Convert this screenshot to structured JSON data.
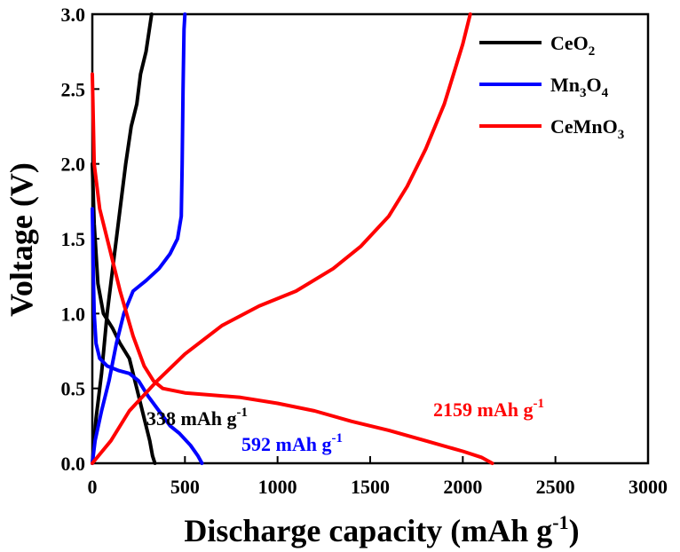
{
  "chart_data": {
    "type": "line",
    "xlabel": "Discharge capacity (mAh g",
    "xlabel_sup": "-1",
    "xlabel_end": ")",
    "ylabel": "Voltage (V)",
    "xlim": [
      0,
      3000
    ],
    "ylim": [
      0.0,
      3.0
    ],
    "xticks": [
      0,
      500,
      1000,
      1500,
      2000,
      2500,
      3000
    ],
    "xtick_labels": [
      "0",
      "500",
      "1000",
      "1500",
      "2000",
      "2500",
      "3000"
    ],
    "yticks": [
      0.0,
      0.5,
      1.0,
      1.5,
      2.0,
      2.5,
      3.0
    ],
    "ytick_labels": [
      "0.0",
      "0.5",
      "1.0",
      "1.5",
      "2.0",
      "2.5",
      "3.0"
    ],
    "legend_position": "top-right",
    "series": [
      {
        "name": "CeO2",
        "legend_main": "CeO",
        "legend_sub": "2",
        "color": "#000000",
        "discharge": [
          [
            0,
            2.0
          ],
          [
            10,
            1.6
          ],
          [
            30,
            1.2
          ],
          [
            60,
            1.0
          ],
          [
            110,
            0.9
          ],
          [
            150,
            0.8
          ],
          [
            200,
            0.7
          ],
          [
            240,
            0.5
          ],
          [
            280,
            0.3
          ],
          [
            310,
            0.15
          ],
          [
            325,
            0.05
          ],
          [
            338,
            0.0
          ]
        ],
        "charge": [
          [
            0,
            0.0
          ],
          [
            20,
            0.3
          ],
          [
            50,
            0.6
          ],
          [
            80,
            1.0
          ],
          [
            120,
            1.4
          ],
          [
            150,
            1.7
          ],
          [
            180,
            2.0
          ],
          [
            210,
            2.25
          ],
          [
            240,
            2.4
          ],
          [
            260,
            2.6
          ],
          [
            290,
            2.75
          ],
          [
            320,
            3.0
          ]
        ]
      },
      {
        "name": "Mn3O4",
        "legend_parts": [
          "Mn",
          "3",
          "O",
          "4"
        ],
        "color": "#0000ff",
        "discharge": [
          [
            0,
            1.7
          ],
          [
            5,
            1.3
          ],
          [
            10,
            1.0
          ],
          [
            20,
            0.8
          ],
          [
            40,
            0.7
          ],
          [
            80,
            0.65
          ],
          [
            140,
            0.62
          ],
          [
            200,
            0.6
          ],
          [
            250,
            0.55
          ],
          [
            300,
            0.45
          ],
          [
            360,
            0.35
          ],
          [
            420,
            0.25
          ],
          [
            470,
            0.2
          ],
          [
            530,
            0.12
          ],
          [
            570,
            0.05
          ],
          [
            592,
            0.0
          ]
        ],
        "charge": [
          [
            0,
            0.0
          ],
          [
            15,
            0.15
          ],
          [
            50,
            0.35
          ],
          [
            90,
            0.55
          ],
          [
            130,
            0.8
          ],
          [
            170,
            1.0
          ],
          [
            220,
            1.15
          ],
          [
            290,
            1.22
          ],
          [
            360,
            1.3
          ],
          [
            420,
            1.4
          ],
          [
            460,
            1.5
          ],
          [
            480,
            1.65
          ],
          [
            485,
            2.0
          ],
          [
            490,
            2.5
          ],
          [
            495,
            2.9
          ],
          [
            500,
            3.0
          ]
        ]
      },
      {
        "name": "CeMnO3",
        "legend_main": "CeMnO",
        "legend_sub": "3",
        "color": "#ff0000",
        "discharge": [
          [
            0,
            2.6
          ],
          [
            10,
            2.0
          ],
          [
            40,
            1.7
          ],
          [
            90,
            1.45
          ],
          [
            150,
            1.15
          ],
          [
            220,
            0.85
          ],
          [
            280,
            0.65
          ],
          [
            330,
            0.55
          ],
          [
            380,
            0.5
          ],
          [
            500,
            0.47
          ],
          [
            800,
            0.44
          ],
          [
            1000,
            0.4
          ],
          [
            1200,
            0.35
          ],
          [
            1400,
            0.28
          ],
          [
            1600,
            0.22
          ],
          [
            1800,
            0.15
          ],
          [
            2000,
            0.08
          ],
          [
            2100,
            0.04
          ],
          [
            2159,
            0.0
          ]
        ],
        "charge": [
          [
            0,
            0.0
          ],
          [
            100,
            0.15
          ],
          [
            200,
            0.35
          ],
          [
            350,
            0.55
          ],
          [
            500,
            0.73
          ],
          [
            700,
            0.92
          ],
          [
            900,
            1.05
          ],
          [
            1100,
            1.15
          ],
          [
            1300,
            1.3
          ],
          [
            1450,
            1.45
          ],
          [
            1600,
            1.65
          ],
          [
            1700,
            1.85
          ],
          [
            1800,
            2.1
          ],
          [
            1900,
            2.4
          ],
          [
            1950,
            2.6
          ],
          [
            2000,
            2.8
          ],
          [
            2030,
            2.95
          ],
          [
            2040,
            3.0
          ]
        ]
      }
    ],
    "annotations": [
      {
        "value": "338",
        "unit": " mAh g",
        "sup": "-1",
        "color": "#000000",
        "x": 300,
        "y": 0.24
      },
      {
        "value": "592",
        "unit": " mAh g",
        "sup": "-1",
        "color": "#0000ff",
        "x": 800,
        "y": 0.08
      },
      {
        "value": "2159",
        "unit": " mAh g",
        "sup": "-1",
        "color": "#ff0000",
        "x": 1860,
        "y": 0.35
      }
    ]
  }
}
